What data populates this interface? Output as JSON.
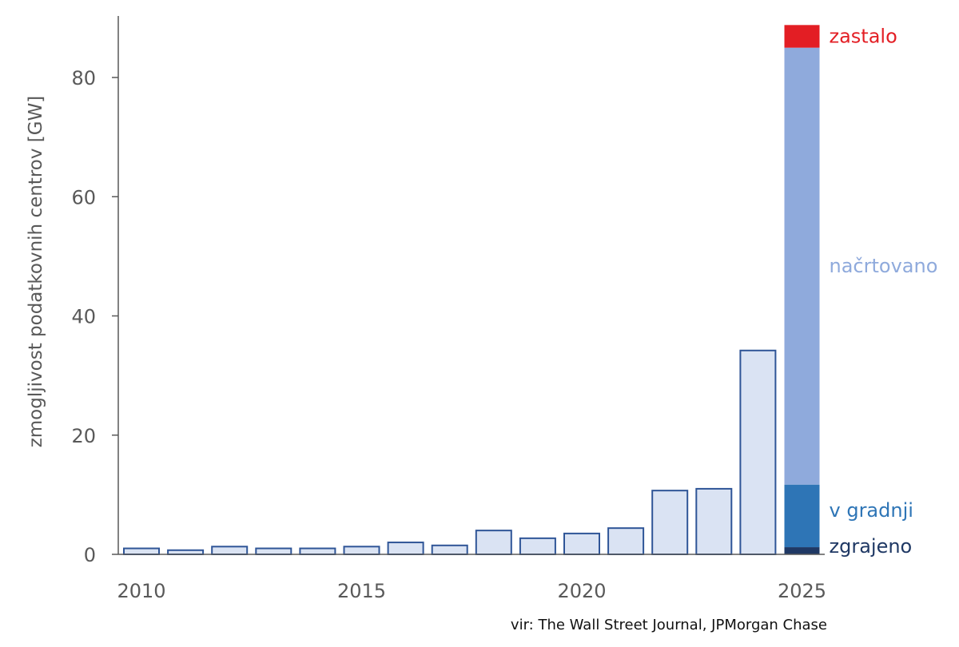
{
  "chart_data": {
    "type": "bar",
    "ylabel": "zmogljivost podatkovnih centrov [GW]",
    "ylim": [
      0,
      90
    ],
    "yticks": [
      0,
      20,
      40,
      60,
      80
    ],
    "xtick_labels": [
      "2010",
      "2015",
      "2020",
      "2025"
    ],
    "categories": [
      "2010",
      "2011",
      "2012",
      "2013",
      "2014",
      "2015",
      "2016",
      "2017",
      "2018",
      "2019",
      "2020",
      "2021",
      "2022",
      "2023",
      "2024"
    ],
    "values": [
      1.0,
      0.7,
      1.3,
      1.0,
      1.0,
      1.3,
      2.0,
      1.5,
      4.0,
      2.7,
      3.5,
      4.4,
      10.7,
      11.0,
      34.2
    ],
    "bar_color": "#dae3f3",
    "bar_edge_color": "#2f5597",
    "stacked_bar": {
      "category": "2025",
      "segments": [
        {
          "name": "zgrajeno",
          "value": 1.2,
          "color": "#1f3864"
        },
        {
          "name": "v gradnji",
          "value": 10.5,
          "color": "#2e75b6"
        },
        {
          "name": "načrtovano",
          "value": 73.3,
          "color": "#8faadc"
        },
        {
          "name": "zastalo",
          "value": 3.8,
          "color": "#e31e24"
        }
      ]
    },
    "grid": false,
    "legend": "direct labels right of stacked bar",
    "source": "vir: The Wall Street Journal, JPMorgan Chase"
  }
}
